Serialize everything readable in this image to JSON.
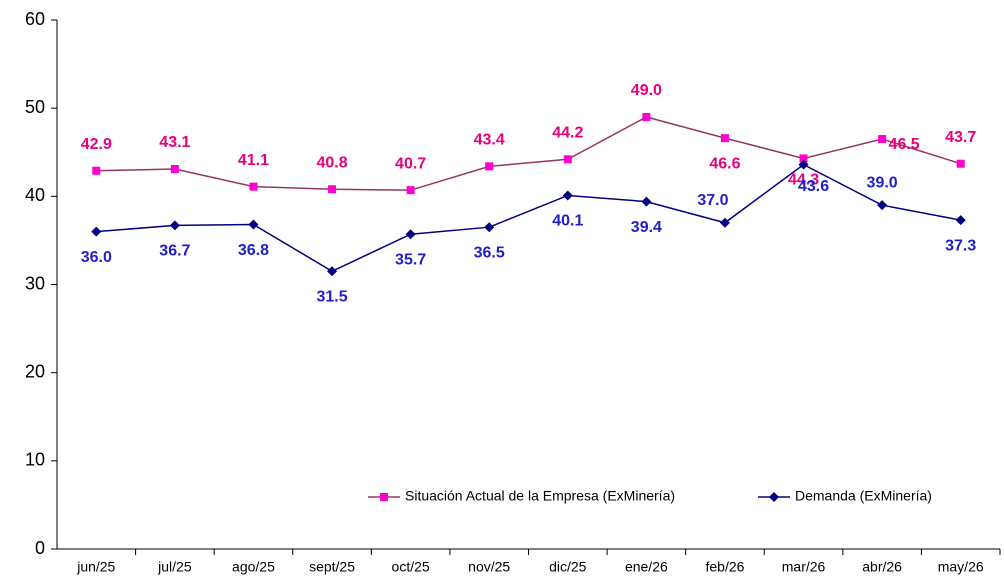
{
  "chart_data": {
    "type": "line",
    "categories": [
      "jun/25",
      "jul/25",
      "ago/25",
      "sept/25",
      "oct/25",
      "nov/25",
      "dic/25",
      "ene/26",
      "feb/26",
      "mar/26",
      "abr/26",
      "may/26"
    ],
    "series": [
      {
        "name": "Situación Actual de la Empresa (ExMinería)",
        "color": "#ff00cc",
        "line_color": "#993366",
        "label_color": "#e6007e",
        "marker": "square",
        "values": [
          42.9,
          43.1,
          41.1,
          40.8,
          40.7,
          43.4,
          44.2,
          49.0,
          46.6,
          44.3,
          46.5,
          43.7
        ],
        "value_labels": [
          "42.9",
          "43.1",
          "41.1",
          "40.8",
          "40.7",
          "43.4",
          "44.2",
          "49.0",
          "46.6",
          "44.3",
          "46.5",
          "43.7"
        ]
      },
      {
        "name": "Demanda (ExMinería)",
        "color": "#000080",
        "line_color": "#000080",
        "label_color": "#1f1fc8",
        "marker": "diamond",
        "values": [
          36.0,
          36.7,
          36.8,
          31.5,
          35.7,
          36.5,
          40.1,
          39.4,
          37.0,
          43.6,
          39.0,
          37.3
        ],
        "value_labels": [
          "36.0",
          "36.7",
          "36.8",
          "31.5",
          "35.7",
          "36.5",
          "40.1",
          "39.4",
          "37.0",
          "43.6",
          "39.0",
          "37.3"
        ]
      }
    ],
    "ylim": [
      0,
      60
    ],
    "yticks": [
      0,
      10,
      20,
      30,
      40,
      50,
      60
    ],
    "grid": false,
    "legend": "bottom-right"
  }
}
